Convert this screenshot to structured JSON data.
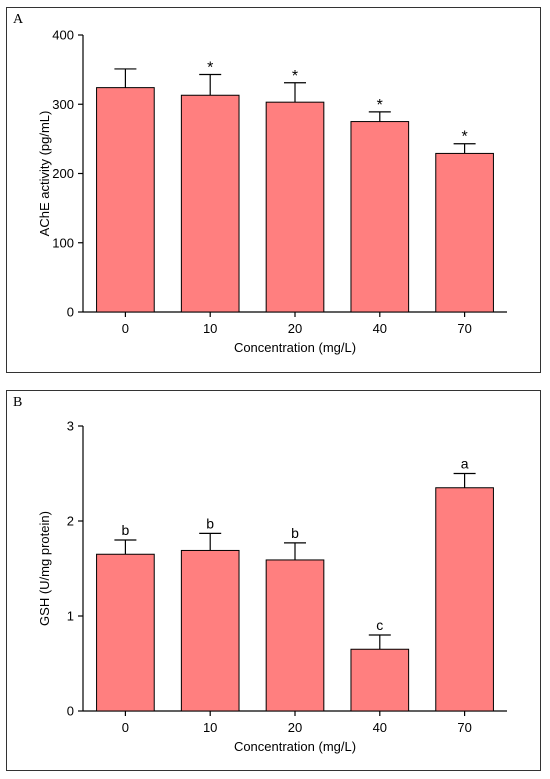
{
  "chart_data": [
    {
      "panel_label": "A",
      "type": "bar",
      "categories": [
        "0",
        "10",
        "20",
        "40",
        "70"
      ],
      "values": [
        324,
        313,
        303,
        275,
        229
      ],
      "errors": [
        27,
        30,
        28,
        14,
        14
      ],
      "annotations": [
        "",
        "*",
        "*",
        "*",
        "*"
      ],
      "xlabel": "Concentration (mg/L)",
      "ylabel": "AChE activity (pg/mL)",
      "ylim": [
        0,
        400
      ],
      "yticks": [
        0,
        100,
        200,
        300,
        400
      ],
      "bar_color": "#ff7f7f",
      "grid": false
    },
    {
      "panel_label": "B",
      "type": "bar",
      "categories": [
        "0",
        "10",
        "20",
        "40",
        "70"
      ],
      "values": [
        1.65,
        1.69,
        1.59,
        0.65,
        2.35
      ],
      "errors": [
        0.15,
        0.18,
        0.18,
        0.15,
        0.15
      ],
      "annotations": [
        "b",
        "b",
        "b",
        "c",
        "a"
      ],
      "xlabel": "Concentration (mg/L)",
      "ylabel": "GSH (U/mg protein)",
      "ylim": [
        0,
        3
      ],
      "yticks": [
        0,
        1,
        2,
        3
      ],
      "bar_color": "#ff7f7f",
      "grid": false
    }
  ]
}
